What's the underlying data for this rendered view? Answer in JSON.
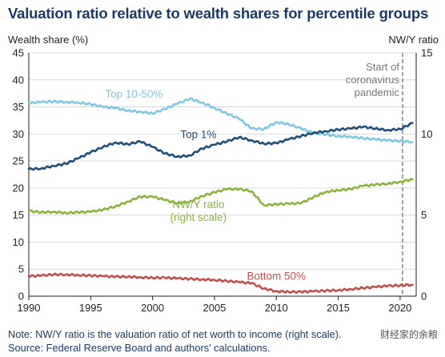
{
  "chart_data": {
    "type": "line",
    "title": "Valuation ratio relative to wealth shares for percentile groups",
    "ylabel_left": "Wealth share (%)",
    "ylabel_right": "NW/Y ratio",
    "xlim": [
      1990,
      2021.3
    ],
    "ylim_left": [
      0,
      45
    ],
    "ylim_right": [
      0,
      15
    ],
    "x_ticks": [
      1990,
      1995,
      2000,
      2005,
      2010,
      2015,
      2020
    ],
    "y_ticks_left": [
      0,
      5,
      10,
      15,
      20,
      25,
      30,
      35,
      40,
      45
    ],
    "y_ticks_right": [
      0,
      5,
      10,
      15
    ],
    "grid": "horizontal",
    "pandemic_line": {
      "x": 2020.2,
      "label": [
        "Start of",
        "coronavirus",
        "pandemic"
      ]
    },
    "series": [
      {
        "name": "Top 10-50%",
        "axis": "left",
        "color": "#7ec8e3",
        "label": "Top 10-50%",
        "label_pos": [
          1998.5,
          36.7
        ],
        "points": [
          [
            1990,
            35.7
          ],
          [
            1991,
            35.9
          ],
          [
            1992,
            36.0
          ],
          [
            1993,
            35.9
          ],
          [
            1994,
            35.8
          ],
          [
            1995,
            35.5
          ],
          [
            1996,
            35.0
          ],
          [
            1997,
            34.8
          ],
          [
            1998,
            34.3
          ],
          [
            1999,
            34.1
          ],
          [
            2000,
            33.8
          ],
          [
            2001,
            34.6
          ],
          [
            2002,
            35.6
          ],
          [
            2003,
            36.5
          ],
          [
            2004,
            35.8
          ],
          [
            2005,
            34.8
          ],
          [
            2006,
            33.8
          ],
          [
            2007,
            32.8
          ],
          [
            2008,
            31.0
          ],
          [
            2009,
            30.9
          ],
          [
            2010,
            32.2
          ],
          [
            2011,
            31.8
          ],
          [
            2012,
            31.0
          ],
          [
            2013,
            30.2
          ],
          [
            2014,
            29.9
          ],
          [
            2015,
            29.6
          ],
          [
            2016,
            29.5
          ],
          [
            2017,
            29.2
          ],
          [
            2018,
            29.0
          ],
          [
            2019,
            28.8
          ],
          [
            2020,
            28.7
          ],
          [
            2021,
            28.5
          ]
        ]
      },
      {
        "name": "Top 1%",
        "axis": "left",
        "color": "#1f4e79",
        "label": "Top 1%",
        "label_pos": [
          2003.7,
          29.2
        ],
        "points": [
          [
            1990,
            23.5
          ],
          [
            1991,
            23.6
          ],
          [
            1992,
            24.1
          ],
          [
            1993,
            24.5
          ],
          [
            1994,
            25.5
          ],
          [
            1995,
            26.6
          ],
          [
            1996,
            27.6
          ],
          [
            1997,
            28.4
          ],
          [
            1998,
            28.1
          ],
          [
            1999,
            28.6
          ],
          [
            2000,
            27.6
          ],
          [
            2001,
            26.4
          ],
          [
            2002,
            25.8
          ],
          [
            2003,
            26.0
          ],
          [
            2004,
            27.3
          ],
          [
            2005,
            28.0
          ],
          [
            2006,
            28.6
          ],
          [
            2007,
            29.4
          ],
          [
            2008,
            28.8
          ],
          [
            2009,
            28.2
          ],
          [
            2010,
            28.3
          ],
          [
            2011,
            29.0
          ],
          [
            2012,
            29.6
          ],
          [
            2013,
            30.2
          ],
          [
            2014,
            30.5
          ],
          [
            2015,
            30.8
          ],
          [
            2016,
            31.0
          ],
          [
            2017,
            31.3
          ],
          [
            2018,
            31.0
          ],
          [
            2019,
            30.7
          ],
          [
            2020,
            30.9
          ],
          [
            2021,
            32.0
          ]
        ]
      },
      {
        "name": "NW/Y ratio (right scale)",
        "axis": "right",
        "color": "#8db33f",
        "label": [
          "NW/Y ratio",
          "(right scale)"
        ],
        "label_pos": [
          2003.7,
          16.3
        ],
        "points": [
          [
            1990,
            5.25
          ],
          [
            1991,
            5.17
          ],
          [
            1992,
            5.2
          ],
          [
            1993,
            5.13
          ],
          [
            1994,
            5.17
          ],
          [
            1995,
            5.2
          ],
          [
            1996,
            5.33
          ],
          [
            1997,
            5.53
          ],
          [
            1998,
            5.83
          ],
          [
            1999,
            6.13
          ],
          [
            2000,
            6.13
          ],
          [
            2001,
            5.93
          ],
          [
            2002,
            5.73
          ],
          [
            2003,
            5.83
          ],
          [
            2004,
            6.17
          ],
          [
            2005,
            6.4
          ],
          [
            2006,
            6.6
          ],
          [
            2007,
            6.6
          ],
          [
            2008,
            6.47
          ],
          [
            2009,
            5.6
          ],
          [
            2010,
            5.67
          ],
          [
            2011,
            5.7
          ],
          [
            2012,
            5.73
          ],
          [
            2013,
            6.1
          ],
          [
            2014,
            6.43
          ],
          [
            2015,
            6.53
          ],
          [
            2016,
            6.6
          ],
          [
            2017,
            6.8
          ],
          [
            2018,
            6.87
          ],
          [
            2019,
            6.93
          ],
          [
            2020,
            7.05
          ],
          [
            2021,
            7.2
          ]
        ]
      },
      {
        "name": "Bottom 50%",
        "axis": "left",
        "color": "#c0504d",
        "label": "Bottom 50%",
        "label_pos": [
          2010.0,
          3.0
        ],
        "points": [
          [
            1990,
            3.7
          ],
          [
            1991,
            3.8
          ],
          [
            1992,
            4.0
          ],
          [
            1993,
            4.0
          ],
          [
            1994,
            3.9
          ],
          [
            1995,
            3.8
          ],
          [
            1996,
            3.7
          ],
          [
            1997,
            3.6
          ],
          [
            1998,
            3.6
          ],
          [
            1999,
            3.5
          ],
          [
            2000,
            3.4
          ],
          [
            2001,
            3.4
          ],
          [
            2002,
            3.3
          ],
          [
            2003,
            3.2
          ],
          [
            2004,
            3.1
          ],
          [
            2005,
            3.0
          ],
          [
            2006,
            2.8
          ],
          [
            2007,
            2.6
          ],
          [
            2008,
            2.4
          ],
          [
            2009,
            1.4
          ],
          [
            2010,
            0.9
          ],
          [
            2011,
            0.8
          ],
          [
            2012,
            0.8
          ],
          [
            2013,
            0.9
          ],
          [
            2014,
            1.0
          ],
          [
            2015,
            1.1
          ],
          [
            2016,
            1.3
          ],
          [
            2017,
            1.5
          ],
          [
            2018,
            1.7
          ],
          [
            2019,
            1.9
          ],
          [
            2020,
            2.0
          ],
          [
            2021,
            2.1
          ]
        ]
      }
    ],
    "notes": [
      "Note: NW/Y ratio is the valuation ratio of net worth to income (right scale).",
      "Source: Federal Reserve Board and authors' calculations."
    ]
  },
  "watermark": "财经家的余粮"
}
